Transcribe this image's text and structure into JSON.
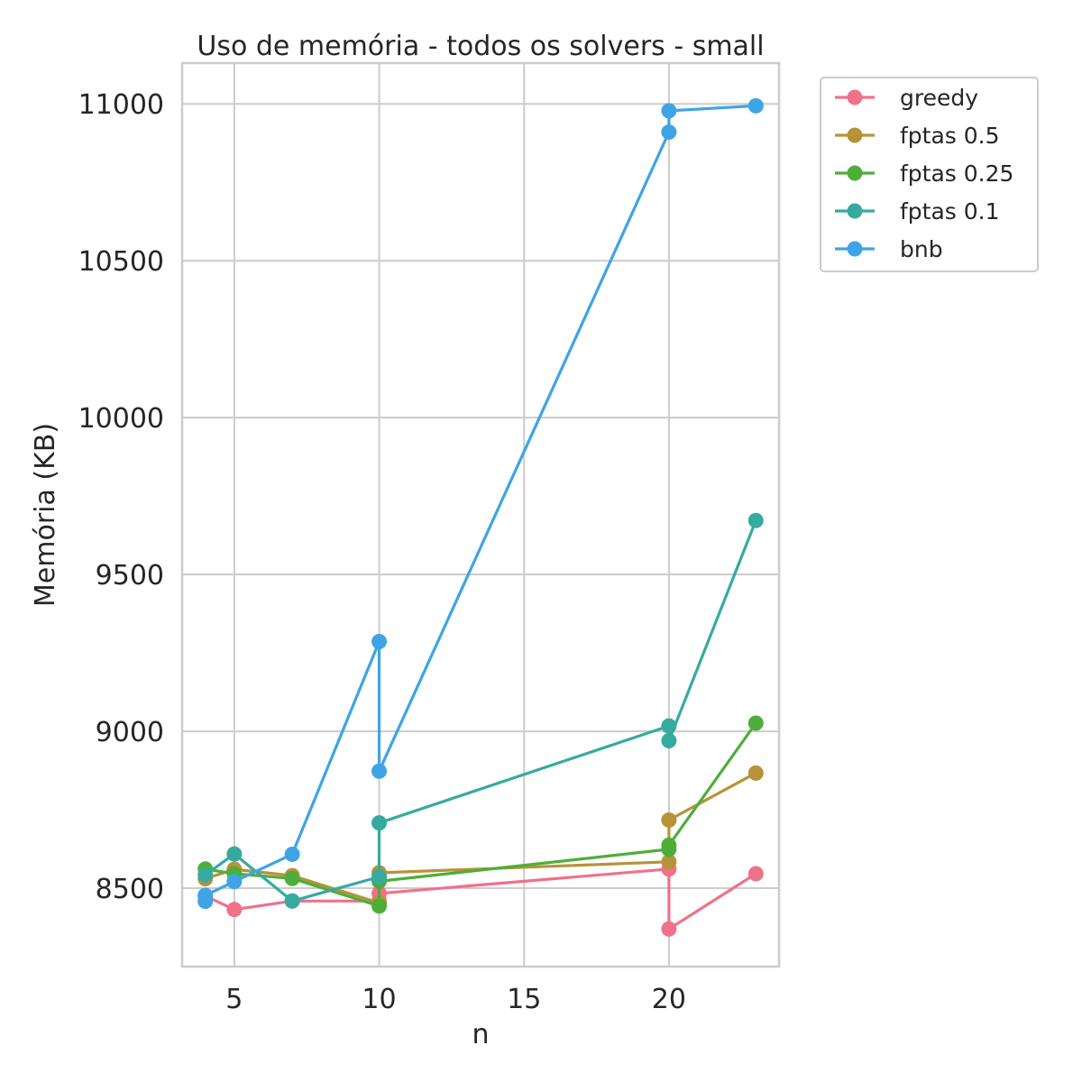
{
  "chart_data": {
    "type": "line",
    "title": "Uso de memória - todos os solvers - small",
    "xlabel": "n",
    "ylabel": "Memória (KB)",
    "xlim": [
      3.2,
      23.8
    ],
    "ylim": [
      8250,
      11130
    ],
    "x_ticks": [
      5,
      10,
      15,
      20
    ],
    "y_ticks": [
      8500,
      9000,
      9500,
      10000,
      10500,
      11000
    ],
    "grid": true,
    "legend_position": "outside-top-right",
    "series": [
      {
        "name": "greedy",
        "color": "#f0718a",
        "points": [
          [
            4,
            8475
          ],
          [
            5,
            8432
          ],
          [
            7,
            8459
          ],
          [
            10,
            8459
          ],
          [
            10,
            8483
          ],
          [
            20,
            8561
          ],
          [
            20,
            8370
          ],
          [
            23,
            8546
          ]
        ]
      },
      {
        "name": "fptas 0.5",
        "color": "#b89239",
        "points": [
          [
            4,
            8530
          ],
          [
            5,
            8560
          ],
          [
            7,
            8540
          ],
          [
            10,
            8453
          ],
          [
            10,
            8549
          ],
          [
            20,
            8584
          ],
          [
            20,
            8717
          ],
          [
            23,
            8867
          ]
        ]
      },
      {
        "name": "fptas 0.25",
        "color": "#4eae3a",
        "points": [
          [
            4,
            8561
          ],
          [
            5,
            8546
          ],
          [
            7,
            8531
          ],
          [
            10,
            8443
          ],
          [
            10,
            8522
          ],
          [
            20,
            8624
          ],
          [
            20,
            8637
          ],
          [
            23,
            9026
          ]
        ]
      },
      {
        "name": "fptas 0.1",
        "color": "#35aba0",
        "points": [
          [
            4,
            8542
          ],
          [
            5,
            8609
          ],
          [
            7,
            8459
          ],
          [
            10,
            8536
          ],
          [
            10,
            8708
          ],
          [
            20,
            9017
          ],
          [
            20,
            8970
          ],
          [
            23,
            9672
          ]
        ]
      },
      {
        "name": "bnb",
        "color": "#3ea4e5",
        "points": [
          [
            4,
            8458
          ],
          [
            4,
            8477
          ],
          [
            5,
            8521
          ],
          [
            7,
            8608
          ],
          [
            10,
            9286
          ],
          [
            10,
            8873
          ],
          [
            20,
            10910
          ],
          [
            20,
            10978
          ],
          [
            23,
            10994
          ]
        ]
      }
    ]
  }
}
